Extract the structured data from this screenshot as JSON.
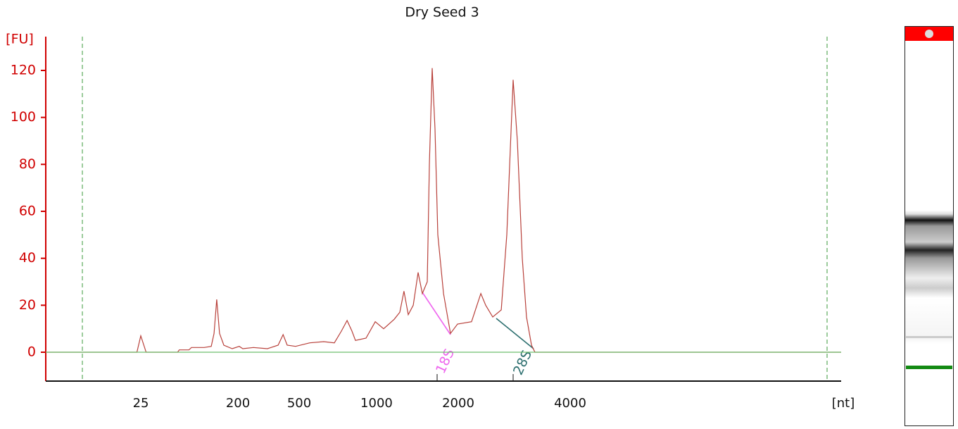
{
  "chart_data": {
    "type": "line",
    "title": "Dry Seed 3",
    "y_label": "[FU]",
    "x_label": "[nt]",
    "x": [
      3.3,
      23,
      25,
      28,
      55,
      57,
      70,
      74,
      97,
      113,
      120,
      127,
      135,
      148,
      177,
      204,
      215,
      252,
      311,
      365,
      393,
      418,
      474,
      550,
      623,
      685,
      730,
      768,
      802,
      828,
      910,
      988,
      1062,
      1161,
      1218,
      1262,
      1309,
      1365,
      1423,
      1475,
      1538,
      1565,
      1603,
      1642,
      1682,
      1765,
      1873,
      1988,
      2172,
      2300,
      2370,
      2476,
      2610,
      2702,
      2810,
      2884,
      2974,
      3053,
      3148,
      3217,
      21400
    ],
    "values": [
      0,
      0,
      7,
      0,
      0,
      1,
      1,
      2,
      2,
      2.5,
      8,
      22.5,
      8,
      3,
      1.5,
      2.5,
      1.5,
      2,
      1.5,
      3,
      7.5,
      3,
      2.5,
      4,
      4.5,
      4,
      9,
      13.5,
      9,
      5,
      6,
      13,
      10,
      14,
      17,
      26,
      16,
      20,
      34,
      25,
      30,
      80,
      121,
      95,
      50,
      25,
      8,
      12,
      13,
      25,
      20,
      15,
      18,
      50,
      116,
      90,
      40,
      15,
      3,
      0,
      0
    ],
    "color": "#b8403a",
    "axis_color": "#d00000",
    "baseline_color": "#6fbf6f",
    "xlim": [
      3.3,
      21400
    ],
    "xticks": [
      25,
      200,
      500,
      1000,
      2000,
      4000
    ],
    "ylim": [
      -12.3,
      134.4
    ],
    "yticks": [
      0,
      20,
      40,
      60,
      80,
      100,
      120
    ],
    "annotations": [
      "18S",
      "28S"
    ]
  }
}
